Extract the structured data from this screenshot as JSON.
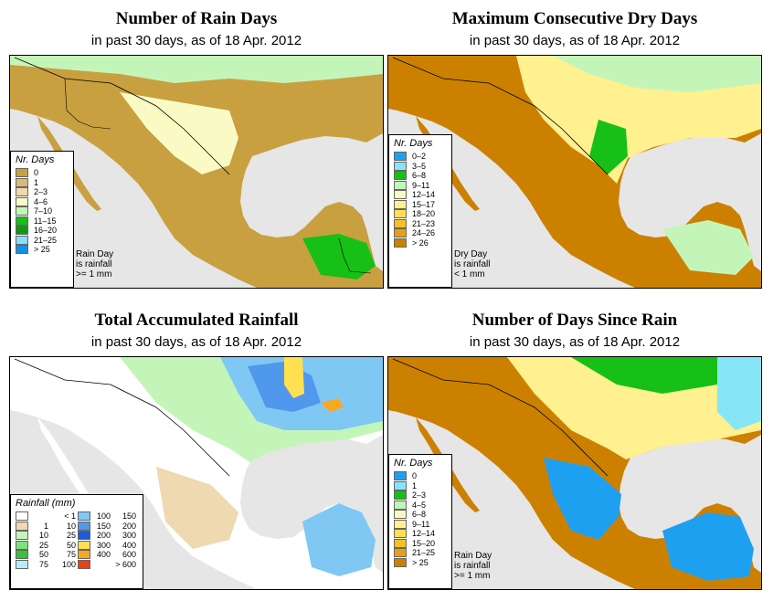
{
  "panels": {
    "rain_days": {
      "title": "Number of Rain Days",
      "subtitle": "in past 30 days, as of  18 Apr. 2012",
      "legend_title": "Nr. Days",
      "legend": [
        {
          "label": "0",
          "color": "#c8a040"
        },
        {
          "label": "1",
          "color": "#d9b87a"
        },
        {
          "label": "2–3",
          "color": "#eed9a8"
        },
        {
          "label": "4–6",
          "color": "#fafac4"
        },
        {
          "label": "7–10",
          "color": "#c4f5b8"
        },
        {
          "label": "11–15",
          "color": "#16c016"
        },
        {
          "label": "16–20",
          "color": "#0e9a0e"
        },
        {
          "label": "21–25",
          "color": "#88e0f8"
        },
        {
          "label": "> 25",
          "color": "#1490e0"
        }
      ],
      "note": "Rain Day\nis rainfall\n>= 1 mm"
    },
    "dry_days": {
      "title": "Maximum Consecutive Dry Days",
      "subtitle": "in past 30 days, as of  18 Apr. 2012",
      "legend_title": "Nr. Days",
      "legend": [
        {
          "label": "0–2",
          "color": "#1ea0f0"
        },
        {
          "label": "3–5",
          "color": "#86e6f8"
        },
        {
          "label": "6–8",
          "color": "#16c016"
        },
        {
          "label": "9–11",
          "color": "#c4f5b8"
        },
        {
          "label": "12–14",
          "color": "#fafac4"
        },
        {
          "label": "15–17",
          "color": "#fff090"
        },
        {
          "label": "18–20",
          "color": "#ffe050"
        },
        {
          "label": "21–23",
          "color": "#f8c020"
        },
        {
          "label": "24–26",
          "color": "#e8a010"
        },
        {
          "label": "> 26",
          "color": "#cc8000"
        }
      ],
      "note": "Dry Day\nis rainfall\n< 1 mm"
    },
    "rainfall": {
      "title": "Total Accumulated Rainfall",
      "subtitle": "in past 30 days, as of  18 Apr. 2012",
      "legend_title": "Rainfall (mm)",
      "legend": [
        {
          "lo": "",
          "hi": "< 1",
          "color": "#ffffff"
        },
        {
          "lo": "1",
          "hi": "10",
          "color": "#eed9b0"
        },
        {
          "lo": "10",
          "hi": "25",
          "color": "#c4f5b8"
        },
        {
          "lo": "25",
          "hi": "50",
          "color": "#7ee07e"
        },
        {
          "lo": "50",
          "hi": "75",
          "color": "#3cc03c"
        },
        {
          "lo": "75",
          "hi": "100",
          "color": "#b4ecf8"
        },
        {
          "lo": "100",
          "hi": "150",
          "color": "#80c8f4"
        },
        {
          "lo": "150",
          "hi": "200",
          "color": "#5098ec"
        },
        {
          "lo": "200",
          "hi": "300",
          "color": "#1c5cd8"
        },
        {
          "lo": "300",
          "hi": "400",
          "color": "#ffe050"
        },
        {
          "lo": "400",
          "hi": "600",
          "color": "#f8a820"
        },
        {
          "lo": "",
          "hi": "> 600",
          "color": "#f04010"
        }
      ]
    },
    "since_rain": {
      "title": "Number of Days Since Rain",
      "subtitle": "in past 30 days, as of  18 Apr. 2012",
      "legend_title": "Nr. Days",
      "legend": [
        {
          "label": "0",
          "color": "#1ea0f0"
        },
        {
          "label": "1",
          "color": "#86e6f8"
        },
        {
          "label": "2–3",
          "color": "#16c016"
        },
        {
          "label": "4–5",
          "color": "#c4f5b8"
        },
        {
          "label": "6–8",
          "color": "#fafac4"
        },
        {
          "label": "9–11",
          "color": "#fff090"
        },
        {
          "label": "12–14",
          "color": "#ffe050"
        },
        {
          "label": "15–20",
          "color": "#f8c020"
        },
        {
          "label": "21–25",
          "color": "#e8a010"
        },
        {
          "label": "> 25",
          "color": "#cc8000"
        }
      ],
      "note": "Rain Day\nis rainfall\n>= 1 mm"
    }
  }
}
